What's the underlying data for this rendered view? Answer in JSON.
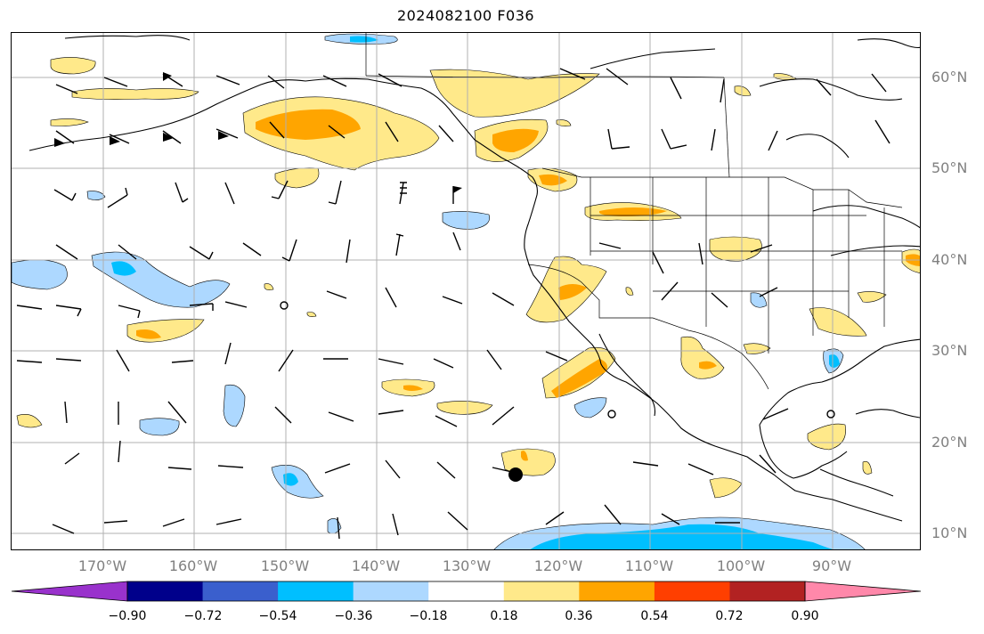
{
  "title": "2024082100 F036",
  "latitude_labels": [
    "60°N",
    "50°N",
    "40°N",
    "30°N",
    "20°N",
    "10°N"
  ],
  "longitude_labels": [
    "170°W",
    "160°W",
    "150°W",
    "140°W",
    "130°W",
    "120°W",
    "110°W",
    "100°W",
    "90°W"
  ],
  "colorbar": {
    "colors": [
      "#9932cc",
      "#00008b",
      "#3a5fcd",
      "#00bfff",
      "#add8ff",
      "#ffffff",
      "#ffe98a",
      "#ffa500",
      "#ff3f00",
      "#b22222",
      "#ff88aa"
    ],
    "tick_labels": [
      "−0.90",
      "−0.72",
      "−0.54",
      "−0.36",
      "−0.18",
      "0.18",
      "0.36",
      "0.54",
      "0.72",
      "0.90"
    ]
  },
  "map": {
    "grid_lines": true,
    "features": [
      "coastlines",
      "country-borders",
      "us-state-borders",
      "wind-barbs",
      "shaded-contours"
    ]
  }
}
